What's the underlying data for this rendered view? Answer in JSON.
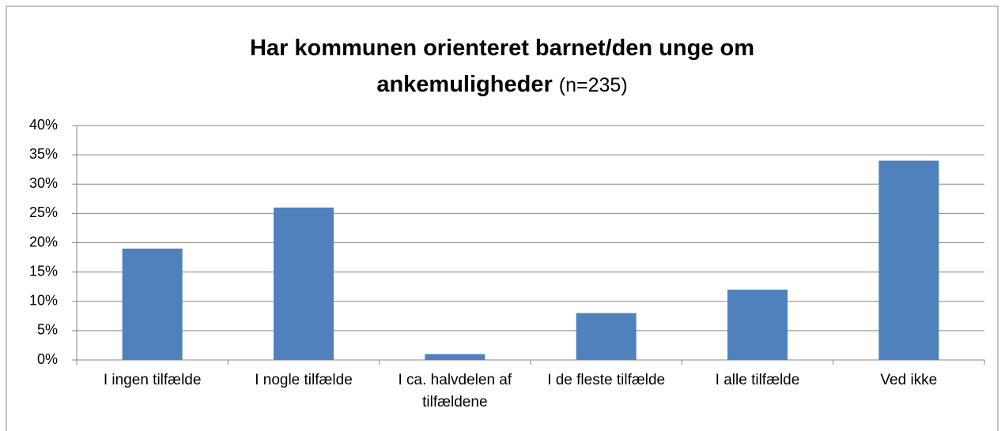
{
  "chart_data": {
    "type": "bar",
    "title": "Har kommunen orienteret barnet/den unge om ankemuligheder",
    "subtitle": "(n=235)",
    "categories": [
      "I ingen tilfælde",
      "I nogle tilfælde",
      "I ca. halvdelen af tilfældene",
      "I de fleste tilfælde",
      "I alle tilfælde",
      "Ved ikke"
    ],
    "values": [
      19,
      26,
      1,
      8,
      12,
      34
    ],
    "color": "#4f81bd",
    "ylim": [
      0,
      40
    ],
    "yticks": [
      {
        "value": 0,
        "label": "0%"
      },
      {
        "value": 5,
        "label": "5%"
      },
      {
        "value": 10,
        "label": "10%"
      },
      {
        "value": 15,
        "label": "15%"
      },
      {
        "value": 20,
        "label": "20%"
      },
      {
        "value": 25,
        "label": "25%"
      },
      {
        "value": 30,
        "label": "30%"
      },
      {
        "value": 35,
        "label": "35%"
      },
      {
        "value": 40,
        "label": "40%"
      }
    ],
    "grid": true
  }
}
